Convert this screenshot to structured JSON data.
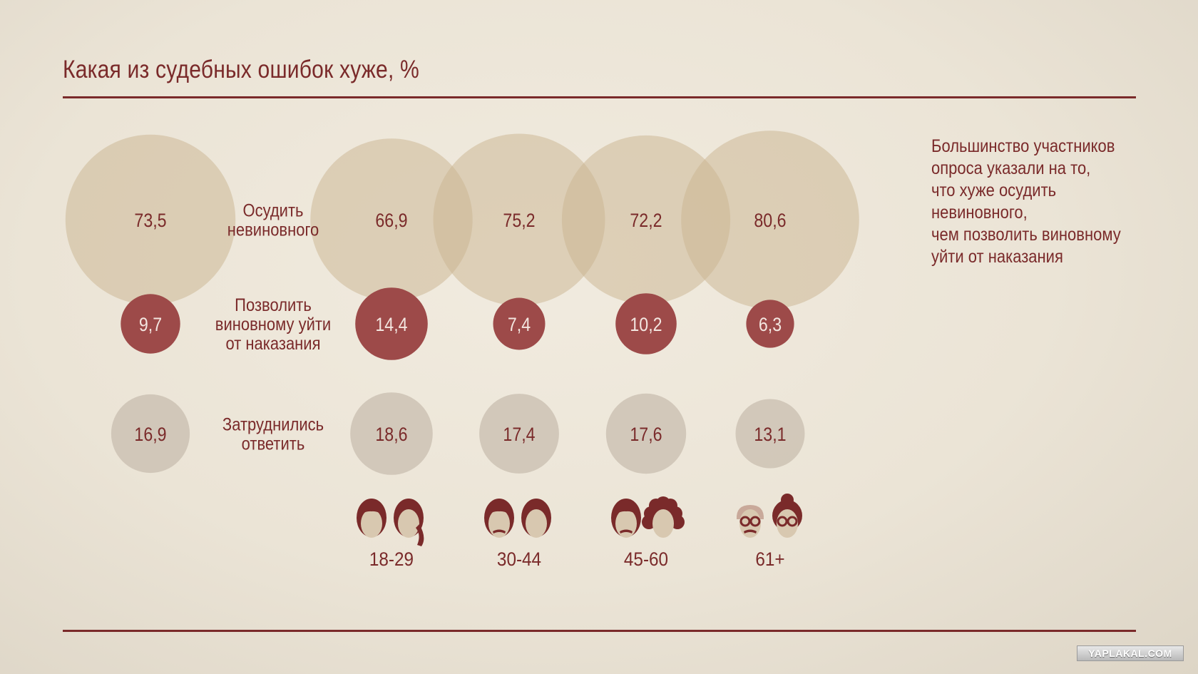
{
  "title": "Какая из судебных ошибок хуже, %",
  "note_lines": [
    "Большинство участников",
    "опроса указали на то,",
    "что хуже осудить",
    "невиновного,",
    "чем позволить виновному",
    "уйти от наказания"
  ],
  "watermark": "YAPLAKAL.COM",
  "colors": {
    "accent": "#7a2a2a",
    "convict_innocent": "#c9b48f",
    "let_guilty_go": "#9d4a49",
    "undecided": "#cdc2b4"
  },
  "chart_data": {
    "type": "bubble",
    "title": "Какая из судебных ошибок хуже, %",
    "categories": [
      "",
      "18-29",
      "30-44",
      "45-60",
      "61+"
    ],
    "series": [
      {
        "name": "Осудить невиновного",
        "label_lines": [
          "Осудить",
          "невиновного"
        ],
        "values": [
          "73,5",
          "66,9",
          "75,2",
          "72,2",
          "80,6"
        ]
      },
      {
        "name": "Позволить виновному уйти от наказания",
        "label_lines": [
          "Позволить",
          "виновному уйти",
          "от наказания"
        ],
        "values": [
          "9,7",
          "14,4",
          "7,4",
          "10,2",
          "6,3"
        ]
      },
      {
        "name": "Затруднились ответить",
        "label_lines": [
          "Затруднились",
          "ответить"
        ],
        "values": [
          "16,9",
          "18,6",
          "17,4",
          "17,6",
          "13,1"
        ]
      }
    ],
    "icons": [
      [
        "young-man-icon",
        "young-woman-icon"
      ],
      [
        "mustached-man-icon",
        "woman-icon"
      ],
      [
        "older-man-icon",
        "curly-haired-woman-icon"
      ],
      [
        "elderly-man-with-glasses-icon",
        "elderly-woman-with-glasses-icon"
      ]
    ]
  }
}
